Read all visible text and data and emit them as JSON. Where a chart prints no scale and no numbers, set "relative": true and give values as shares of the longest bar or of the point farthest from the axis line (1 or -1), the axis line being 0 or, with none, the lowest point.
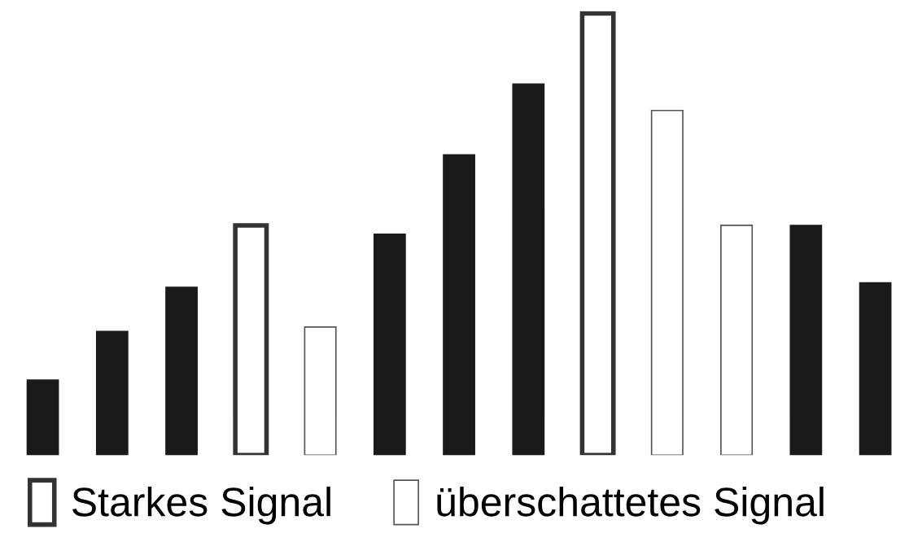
{
  "chart_data": {
    "type": "bar",
    "relative": true,
    "stacked": true,
    "legend": "bottom",
    "grid": false,
    "categories": [
      null,
      null,
      null,
      null,
      null,
      null,
      null,
      null,
      null,
      null,
      null,
      null,
      null
    ],
    "series": [
      {
        "color": "#1a1a1a",
        "values": [
          0.17,
          0.28,
          0.38,
          null,
          null,
          0.5,
          0.68,
          0.84,
          null,
          null,
          null,
          0.52,
          0.39
        ]
      },
      {
        "name": "Starkes Signal",
        "color": "#ffffff",
        "values": [
          null,
          null,
          null,
          0.52,
          null,
          null,
          null,
          null,
          1,
          null,
          null,
          null,
          null
        ]
      },
      {
        "name": "überschattetes Signal",
        "color": "#ffffff",
        "values": [
          null,
          null,
          null,
          null,
          0.29,
          null,
          null,
          null,
          null,
          0.78,
          0.52,
          null,
          null
        ]
      }
    ]
  }
}
